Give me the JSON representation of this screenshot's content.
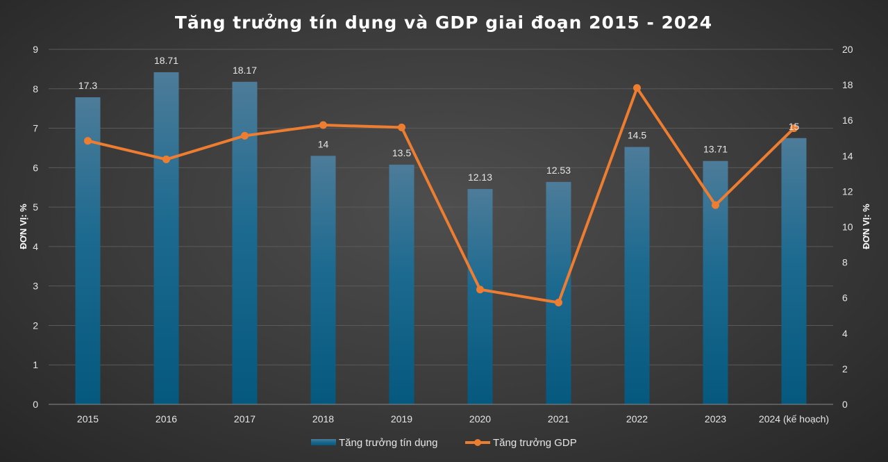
{
  "chart_data": {
    "type": "bar+line",
    "title": "Tăng trưởng tín dụng và GDP giai đoạn 2015 - 2024",
    "categories": [
      "2015",
      "2016",
      "2017",
      "2018",
      "2019",
      "2020",
      "2021",
      "2022",
      "2023",
      "2024 (kế hoạch)"
    ],
    "series": [
      {
        "name": "Tăng trưởng tín dụng",
        "type": "bar",
        "axis": "right",
        "values": [
          17.3,
          18.71,
          18.17,
          14,
          13.5,
          12.13,
          12.53,
          14.5,
          13.71,
          15
        ],
        "labels": [
          "17.3",
          "18.71",
          "18.17",
          "14",
          "13.5",
          "12.13",
          "12.53",
          "14.5",
          "13.71",
          "15"
        ],
        "color": "#1a6a94"
      },
      {
        "name": "Tăng trưởng GDP",
        "type": "line",
        "axis": "left",
        "values": [
          6.68,
          6.21,
          6.81,
          7.08,
          7.02,
          2.91,
          2.58,
          8.02,
          5.05,
          7.0
        ],
        "color": "#ed7d31"
      }
    ],
    "y_left": {
      "label": "ĐƠN VỊ: %",
      "min": 0,
      "max": 9,
      "ticks": [
        "0",
        "1",
        "2",
        "3",
        "4",
        "5",
        "6",
        "7",
        "8",
        "9"
      ]
    },
    "y_right": {
      "label": "ĐƠN VỊ: %",
      "min": 0,
      "max": 20,
      "ticks": [
        "0",
        "2",
        "4",
        "6",
        "8",
        "10",
        "12",
        "14",
        "16",
        "18",
        "20"
      ]
    },
    "grid": true,
    "legend": "bottom"
  }
}
